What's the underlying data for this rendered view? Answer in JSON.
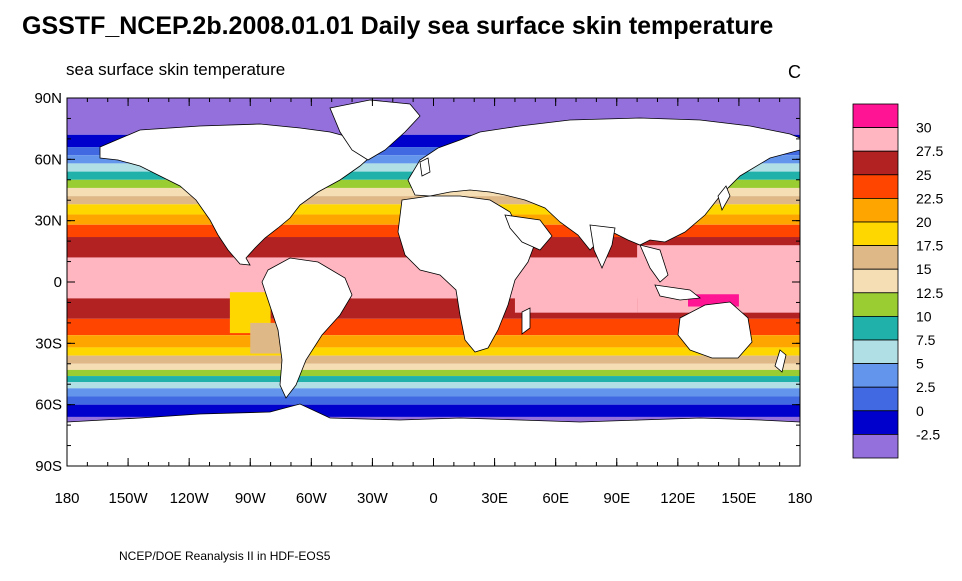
{
  "title": "GSSTF_NCEP.2b.2008.01.01 Daily sea surface skin temperature",
  "subtitle": "sea surface skin temperature",
  "units": "C",
  "footer": "NCEP/DOE Reanalysis II in HDF-EOS5",
  "map": {
    "lon_range": [
      -180,
      180
    ],
    "lat_range": [
      -90,
      90
    ],
    "lon_ticks": [
      {
        "value": -180,
        "label": "180"
      },
      {
        "value": -150,
        "label": "150W"
      },
      {
        "value": -120,
        "label": "120W"
      },
      {
        "value": -90,
        "label": "90W"
      },
      {
        "value": -60,
        "label": "60W"
      },
      {
        "value": -30,
        "label": "30W"
      },
      {
        "value": 0,
        "label": "0"
      },
      {
        "value": 30,
        "label": "30E"
      },
      {
        "value": 60,
        "label": "60E"
      },
      {
        "value": 90,
        "label": "90E"
      },
      {
        "value": 120,
        "label": "120E"
      },
      {
        "value": 150,
        "label": "150E"
      },
      {
        "value": 180,
        "label": "180"
      }
    ],
    "lat_ticks": [
      {
        "value": 90,
        "label": "90N"
      },
      {
        "value": 60,
        "label": "60N"
      },
      {
        "value": 30,
        "label": "30N"
      },
      {
        "value": 0,
        "label": "0"
      },
      {
        "value": -30,
        "label": "30S"
      },
      {
        "value": -60,
        "label": "60S"
      },
      {
        "value": -90,
        "label": "90S"
      }
    ]
  },
  "colorbar": {
    "labels": [
      "30",
      "27.5",
      "25",
      "22.5",
      "20",
      "17.5",
      "15",
      "12.5",
      "10",
      "7.5",
      "5",
      "2.5",
      "0",
      "-2.5"
    ],
    "colors": [
      "#ff1493",
      "#ffb6c1",
      "#b22222",
      "#ff4500",
      "#ffa500",
      "#ffd700",
      "#deb887",
      "#f5deb3",
      "#9acd32",
      "#20b2aa",
      "#b0e0e6",
      "#6495ed",
      "#4169e1",
      "#0000cd",
      "#9370db"
    ]
  },
  "colors": {
    "land": "#ffffff",
    "coast": "#000000"
  }
}
